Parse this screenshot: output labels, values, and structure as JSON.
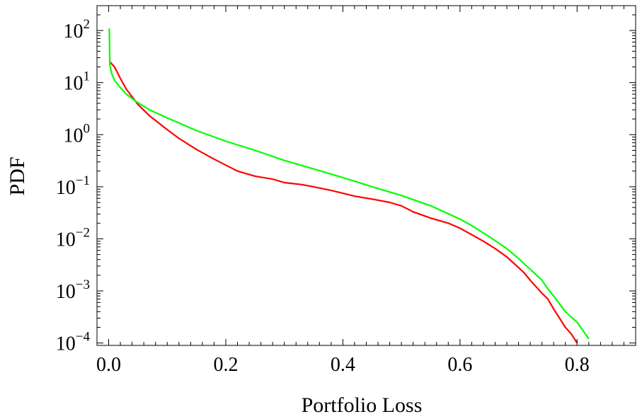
{
  "chart_data": {
    "type": "line",
    "title": "",
    "xlabel": "Portfolio Loss",
    "ylabel": "PDF",
    "xlim": [
      -0.02,
      0.9
    ],
    "ylim": [
      9e-05,
      300
    ],
    "yscale": "log",
    "grid": false,
    "legend": "none",
    "x_ticks": [
      {
        "value": 0.0,
        "label": "0.0"
      },
      {
        "value": 0.2,
        "label": "0.2"
      },
      {
        "value": 0.4,
        "label": "0.4"
      },
      {
        "value": 0.6,
        "label": "0.6"
      },
      {
        "value": 0.8,
        "label": "0.8"
      }
    ],
    "y_ticks": [
      {
        "value": 100,
        "base": "10",
        "exp": "2"
      },
      {
        "value": 10,
        "base": "10",
        "exp": "1"
      },
      {
        "value": 1,
        "base": "10",
        "exp": "0"
      },
      {
        "value": 0.1,
        "base": "10",
        "exp": "−1"
      },
      {
        "value": 0.01,
        "base": "10",
        "exp": "−2"
      },
      {
        "value": 0.001,
        "base": "10",
        "exp": "−3"
      },
      {
        "value": 0.0001,
        "base": "10",
        "exp": "−4"
      }
    ],
    "series": [
      {
        "color": "#ff0000",
        "x": [
          0.002,
          0.01,
          0.02,
          0.03,
          0.05,
          0.07,
          0.1,
          0.12,
          0.15,
          0.18,
          0.2,
          0.22,
          0.25,
          0.28,
          0.3,
          0.33,
          0.35,
          0.38,
          0.4,
          0.42,
          0.45,
          0.48,
          0.5,
          0.52,
          0.55,
          0.58,
          0.6,
          0.62,
          0.64,
          0.66,
          0.68,
          0.7,
          0.71,
          0.72,
          0.73,
          0.74,
          0.75,
          0.76,
          0.77,
          0.78,
          0.79,
          0.8
        ],
        "y": [
          25,
          20,
          12,
          7.5,
          3.8,
          2.3,
          1.25,
          0.85,
          0.52,
          0.34,
          0.26,
          0.2,
          0.16,
          0.14,
          0.12,
          0.11,
          0.1,
          0.085,
          0.075,
          0.066,
          0.058,
          0.05,
          0.043,
          0.033,
          0.025,
          0.02,
          0.016,
          0.012,
          0.009,
          0.0065,
          0.0045,
          0.0028,
          0.0022,
          0.0016,
          0.0012,
          0.0009,
          0.0007,
          0.00045,
          0.0003,
          0.0002,
          0.00015,
          0.0001
        ]
      },
      {
        "color": "#00ff00",
        "x": [
          0.001,
          0.002,
          0.005,
          0.01,
          0.02,
          0.03,
          0.05,
          0.07,
          0.1,
          0.15,
          0.2,
          0.25,
          0.3,
          0.35,
          0.4,
          0.45,
          0.5,
          0.55,
          0.6,
          0.62,
          0.65,
          0.68,
          0.7,
          0.72,
          0.74,
          0.75,
          0.76,
          0.78,
          0.8,
          0.82
        ],
        "y": [
          110,
          22,
          15,
          11,
          8,
          6,
          4.1,
          3,
          2.1,
          1.2,
          0.75,
          0.5,
          0.32,
          0.22,
          0.15,
          0.1,
          0.068,
          0.043,
          0.024,
          0.018,
          0.011,
          0.0065,
          0.0042,
          0.0026,
          0.0016,
          0.0011,
          0.0008,
          0.0004,
          0.00025,
          0.00012
        ]
      }
    ]
  }
}
